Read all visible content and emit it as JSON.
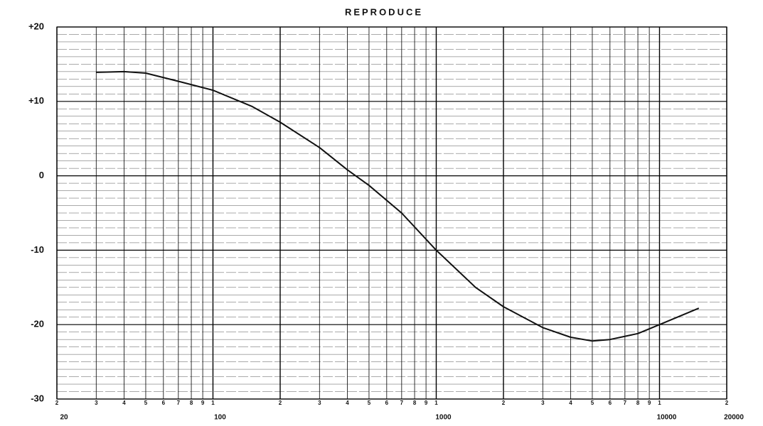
{
  "chart_data": {
    "type": "line",
    "title": "REPRODUCE",
    "log_x": true,
    "grid": true,
    "xlim": [
      20,
      20000
    ],
    "ylim": [
      -30,
      20
    ],
    "yticks": [
      {
        "value": 20,
        "label": "+20"
      },
      {
        "value": 10,
        "label": "+10"
      },
      0,
      -10,
      -20,
      -30
    ],
    "xticks": [
      {
        "value": 20,
        "label": "2"
      },
      {
        "value": 30,
        "label": "3"
      },
      {
        "value": 40,
        "label": "4"
      },
      {
        "value": 50,
        "label": "5"
      },
      {
        "value": 60,
        "label": "6"
      },
      {
        "value": 70,
        "label": "7"
      },
      {
        "value": 80,
        "label": "8"
      },
      {
        "value": 90,
        "label": "9"
      },
      {
        "value": 100,
        "label": "1"
      },
      {
        "value": 200,
        "label": "2"
      },
      {
        "value": 300,
        "label": "3"
      },
      {
        "value": 400,
        "label": "4"
      },
      {
        "value": 500,
        "label": "5"
      },
      {
        "value": 600,
        "label": "6"
      },
      {
        "value": 700,
        "label": "7"
      },
      {
        "value": 800,
        "label": "8"
      },
      {
        "value": 900,
        "label": "9"
      },
      {
        "value": 1000,
        "label": "1"
      },
      {
        "value": 2000,
        "label": "2"
      },
      {
        "value": 3000,
        "label": "3"
      },
      {
        "value": 4000,
        "label": "4"
      },
      {
        "value": 5000,
        "label": "5"
      },
      {
        "value": 6000,
        "label": "6"
      },
      {
        "value": 7000,
        "label": "7"
      },
      {
        "value": 8000,
        "label": "8"
      },
      {
        "value": 9000,
        "label": "9"
      },
      {
        "value": 10000,
        "label": "1"
      },
      {
        "value": 20000,
        "label": "2"
      }
    ],
    "x_decade_labels": [
      20,
      100,
      1000,
      10000,
      20000
    ],
    "x": [
      30,
      40,
      50,
      70,
      100,
      150,
      200,
      300,
      400,
      500,
      700,
      1000,
      1500,
      2000,
      3000,
      4000,
      5000,
      6000,
      8000,
      10000,
      15000
    ],
    "series": [
      {
        "color": "#111111",
        "values": [
          13.9,
          14.0,
          13.8,
          12.7,
          11.5,
          9.3,
          7.2,
          3.8,
          0.8,
          -1.3,
          -5,
          -10,
          -15,
          -17.6,
          -20.4,
          -21.7,
          -22.2,
          -22,
          -21.2,
          -20,
          -17.8
        ]
      }
    ]
  }
}
